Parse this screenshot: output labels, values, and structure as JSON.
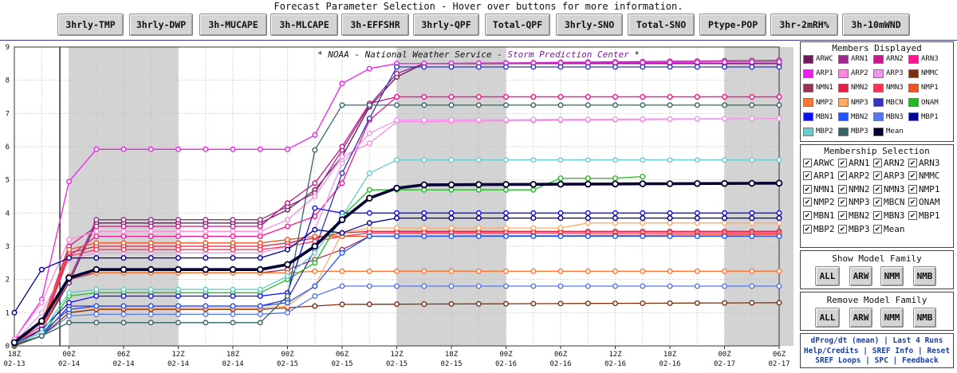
{
  "header": {
    "title": "Forecast Parameter Selection - Hover over buttons for more information.",
    "buttons": [
      "3hrly-TMP",
      "3hrly-DWP",
      "3h-MUCAPE",
      "3h-MLCAPE",
      "3h-EFFSHR",
      "3hrly-QPF",
      "Total-QPF",
      "3hrly-SNO",
      "Total-SNO",
      "Ptype-POP",
      "3hr-2mRH%",
      "3h-10mWND"
    ]
  },
  "chart_data": {
    "type": "line",
    "banner": "* NOAA - National Weather Service - Storm Prediction Center *",
    "banner_parts": {
      "prefix": "* NOAA - National Weather Service - ",
      "link": "Storm Prediction Center",
      "suffix": " *"
    },
    "x_ticks": [
      {
        "hour": "18Z",
        "date": "02-13"
      },
      {
        "hour": "00Z",
        "date": "02-14"
      },
      {
        "hour": "06Z",
        "date": "02-14"
      },
      {
        "hour": "12Z",
        "date": "02-14"
      },
      {
        "hour": "18Z",
        "date": "02-14"
      },
      {
        "hour": "00Z",
        "date": "02-15"
      },
      {
        "hour": "06Z",
        "date": "02-15"
      },
      {
        "hour": "12Z",
        "date": "02-15"
      },
      {
        "hour": "18Z",
        "date": "02-15"
      },
      {
        "hour": "00Z",
        "date": "02-16"
      },
      {
        "hour": "06Z",
        "date": "02-16"
      },
      {
        "hour": "12Z",
        "date": "02-16"
      },
      {
        "hour": "18Z",
        "date": "02-16"
      },
      {
        "hour": "00Z",
        "date": "02-17"
      },
      {
        "hour": "06Z",
        "date": "02-17"
      }
    ],
    "x_step_hours": 3,
    "n_points": 29,
    "y_ticks": [
      0,
      1,
      2,
      3,
      4,
      5,
      6,
      7,
      8,
      9
    ],
    "ylim": [
      0,
      9
    ],
    "night_bands_hours": [
      [
        6,
        18
      ],
      [
        42,
        54
      ],
      [
        78,
        90
      ],
      [
        114,
        126
      ]
    ],
    "current_time_hours": 5,
    "series": [
      {
        "name": "ARWC",
        "color": "#6a1b5a",
        "key": [
          [
            0,
            0
          ],
          [
            1,
            0.5
          ],
          [
            2,
            1.9
          ],
          [
            3,
            3.7
          ],
          [
            9,
            3.7
          ],
          [
            10,
            4.1
          ],
          [
            11,
            4.7
          ],
          [
            12,
            5.7
          ],
          [
            13,
            7.2
          ],
          [
            14,
            8.1
          ],
          [
            15,
            8.5
          ],
          [
            28,
            8.5
          ]
        ]
      },
      {
        "name": "ARN1",
        "color": "#9a2a8c",
        "key": [
          [
            0,
            0.1
          ],
          [
            1,
            0.6
          ],
          [
            2,
            2.0
          ],
          [
            3,
            3.8
          ],
          [
            9,
            3.8
          ],
          [
            10,
            4.2
          ],
          [
            11,
            4.6
          ],
          [
            12,
            5.9
          ],
          [
            13,
            7.25
          ],
          [
            14,
            8.2
          ],
          [
            15,
            8.5
          ],
          [
            28,
            8.6
          ]
        ]
      },
      {
        "name": "ARN2",
        "color": "#c8168c",
        "key": [
          [
            0,
            0.2
          ],
          [
            1,
            0.7
          ],
          [
            2,
            3.0
          ],
          [
            3,
            3.6
          ],
          [
            9,
            3.6
          ],
          [
            10,
            4.3
          ],
          [
            11,
            4.9
          ],
          [
            12,
            6.0
          ],
          [
            13,
            7.3
          ],
          [
            14,
            7.5
          ],
          [
            28,
            7.5
          ]
        ]
      },
      {
        "name": "ARN3",
        "color": "#ff1493",
        "key": [
          [
            0,
            0.1
          ],
          [
            1,
            0.5
          ],
          [
            2,
            2.7
          ],
          [
            3,
            3.3
          ],
          [
            9,
            3.3
          ],
          [
            10,
            3.6
          ],
          [
            11,
            3.9
          ],
          [
            12,
            4.9
          ],
          [
            13,
            6.8
          ],
          [
            14,
            7.5
          ],
          [
            28,
            7.5
          ]
        ]
      },
      {
        "name": "ARP1",
        "color": "#ee22ee",
        "key": [
          [
            0,
            0.2
          ],
          [
            1,
            1.4
          ],
          [
            2,
            4.95
          ],
          [
            3,
            5.92
          ],
          [
            10,
            5.92
          ],
          [
            11,
            6.35
          ],
          [
            12,
            7.9
          ],
          [
            13,
            8.35
          ],
          [
            14,
            8.5
          ],
          [
            28,
            8.55
          ]
        ]
      },
      {
        "name": "ARP2",
        "color": "#ff88dd",
        "key": [
          [
            0,
            0.2
          ],
          [
            1,
            1.3
          ],
          [
            2,
            3.2
          ],
          [
            3,
            3.45
          ],
          [
            9,
            3.45
          ],
          [
            10,
            3.8
          ],
          [
            11,
            4.5
          ],
          [
            12,
            5.7
          ],
          [
            13,
            6.1
          ],
          [
            14,
            6.75
          ],
          [
            28,
            6.85
          ]
        ]
      },
      {
        "name": "ARP3",
        "color": "#ee99ee",
        "key": [
          [
            0,
            0.1
          ],
          [
            1,
            1.0
          ],
          [
            2,
            2.6
          ],
          [
            3,
            2.8
          ],
          [
            9,
            2.8
          ],
          [
            10,
            3.0
          ],
          [
            11,
            3.5
          ],
          [
            12,
            5.5
          ],
          [
            13,
            6.4
          ],
          [
            14,
            6.8
          ],
          [
            28,
            6.85
          ]
        ]
      },
      {
        "name": "NMMC",
        "color": "#7a3010",
        "key": [
          [
            0,
            0
          ],
          [
            1,
            0.3
          ],
          [
            2,
            1.0
          ],
          [
            3,
            1.1
          ],
          [
            9,
            1.1
          ],
          [
            10,
            1.15
          ],
          [
            11,
            1.2
          ],
          [
            12,
            1.25
          ],
          [
            28,
            1.3
          ]
        ]
      },
      {
        "name": "NMN1",
        "color": "#993355",
        "key": [
          [
            0,
            0.1
          ],
          [
            1,
            0.5
          ],
          [
            2,
            2.0
          ],
          [
            3,
            2.2
          ],
          [
            9,
            2.2
          ],
          [
            10,
            2.3
          ],
          [
            11,
            2.6
          ],
          [
            12,
            2.9
          ],
          [
            13,
            3.3
          ],
          [
            14,
            3.3
          ],
          [
            28,
            3.35
          ]
        ]
      },
      {
        "name": "NMN2",
        "color": "#dd2244",
        "key": [
          [
            0,
            0.1
          ],
          [
            1,
            0.6
          ],
          [
            2,
            2.8
          ],
          [
            3,
            3.0
          ],
          [
            9,
            3.0
          ],
          [
            10,
            3.1
          ],
          [
            11,
            3.25
          ],
          [
            12,
            3.4
          ],
          [
            13,
            3.45
          ],
          [
            28,
            3.45
          ]
        ]
      },
      {
        "name": "NMN3",
        "color": "#ff3355",
        "key": [
          [
            0,
            0.1
          ],
          [
            1,
            0.6
          ],
          [
            2,
            2.7
          ],
          [
            3,
            2.9
          ],
          [
            9,
            2.9
          ],
          [
            10,
            3.0
          ],
          [
            11,
            3.15
          ],
          [
            12,
            3.3
          ],
          [
            13,
            3.4
          ],
          [
            28,
            3.4
          ]
        ]
      },
      {
        "name": "NMP1",
        "color": "#ee5522",
        "key": [
          [
            0,
            0.1
          ],
          [
            1,
            0.7
          ],
          [
            2,
            2.9
          ],
          [
            3,
            3.1
          ],
          [
            9,
            3.1
          ],
          [
            10,
            3.2
          ],
          [
            11,
            3.3
          ],
          [
            12,
            3.3
          ],
          [
            28,
            3.35
          ]
        ]
      },
      {
        "name": "NMP2",
        "color": "#ff7733",
        "key": [
          [
            0,
            0.1
          ],
          [
            1,
            0.5
          ],
          [
            2,
            2.1
          ],
          [
            3,
            2.2
          ],
          [
            9,
            2.2
          ],
          [
            10,
            2.2
          ],
          [
            11,
            2.25
          ],
          [
            28,
            2.25
          ]
        ]
      },
      {
        "name": "NMP3",
        "color": "#ffaa66",
        "key": [
          [
            0,
            0.1
          ],
          [
            1,
            0.4
          ],
          [
            2,
            1.1
          ],
          [
            3,
            1.15
          ],
          [
            9,
            1.15
          ],
          [
            10,
            1.2
          ],
          [
            11,
            1.8
          ],
          [
            12,
            3.4
          ],
          [
            13,
            3.55
          ],
          [
            20,
            3.55
          ],
          [
            21,
            3.7
          ],
          [
            28,
            3.7
          ]
        ]
      },
      {
        "name": "MBCN",
        "color": "#3333bb",
        "key": [
          [
            0,
            0.05
          ],
          [
            1,
            0.3
          ],
          [
            2,
            1.2
          ],
          [
            3,
            1.2
          ],
          [
            9,
            1.2
          ],
          [
            10,
            1.4
          ],
          [
            11,
            2.9
          ],
          [
            12,
            5.2
          ],
          [
            13,
            6.85
          ],
          [
            14,
            8.4
          ],
          [
            28,
            8.4
          ]
        ]
      },
      {
        "name": "ONAM",
        "color": "#22bb22",
        "key": [
          [
            0,
            0.05
          ],
          [
            1,
            0.3
          ],
          [
            2,
            1.5
          ],
          [
            3,
            1.6
          ],
          [
            9,
            1.6
          ],
          [
            10,
            2.0
          ],
          [
            11,
            2.5
          ],
          [
            12,
            3.9
          ],
          [
            13,
            4.7
          ],
          [
            19,
            4.7
          ],
          [
            20,
            5.05
          ],
          [
            22,
            5.05
          ],
          [
            23,
            5.1
          ]
        ]
      },
      {
        "name": "MBN1",
        "color": "#1111ee",
        "key": [
          [
            0,
            0.05
          ],
          [
            1,
            0.5
          ],
          [
            2,
            1.3
          ],
          [
            3,
            1.5
          ],
          [
            9,
            1.5
          ],
          [
            10,
            1.6
          ],
          [
            11,
            4.15
          ],
          [
            12,
            4.0
          ],
          [
            13,
            4.0
          ],
          [
            28,
            4.0
          ]
        ]
      },
      {
        "name": "MBN2",
        "color": "#2255ff",
        "key": [
          [
            0,
            0.05
          ],
          [
            1,
            0.4
          ],
          [
            2,
            1.1
          ],
          [
            3,
            1.2
          ],
          [
            9,
            1.2
          ],
          [
            10,
            1.3
          ],
          [
            11,
            1.8
          ],
          [
            12,
            2.8
          ],
          [
            13,
            3.3
          ],
          [
            28,
            3.3
          ]
        ]
      },
      {
        "name": "MBN3",
        "color": "#5577ee",
        "key": [
          [
            0,
            0.05
          ],
          [
            1,
            0.3
          ],
          [
            2,
            0.9
          ],
          [
            3,
            0.95
          ],
          [
            9,
            0.95
          ],
          [
            10,
            1.0
          ],
          [
            11,
            1.5
          ],
          [
            12,
            1.8
          ],
          [
            28,
            1.8
          ]
        ]
      },
      {
        "name": "MBP1",
        "color": "#000099",
        "key": [
          [
            0,
            1.0
          ],
          [
            1,
            2.3
          ],
          [
            2,
            2.65
          ],
          [
            9,
            2.65
          ],
          [
            10,
            2.9
          ],
          [
            11,
            3.5
          ],
          [
            12,
            3.4
          ],
          [
            13,
            3.7
          ],
          [
            14,
            3.85
          ],
          [
            28,
            3.85
          ]
        ]
      },
      {
        "name": "MBP2",
        "color": "#66cccc",
        "key": [
          [
            0,
            0.05
          ],
          [
            1,
            0.4
          ],
          [
            2,
            1.6
          ],
          [
            3,
            1.7
          ],
          [
            9,
            1.7
          ],
          [
            10,
            2.1
          ],
          [
            11,
            2.8
          ],
          [
            12,
            3.9
          ],
          [
            13,
            5.2
          ],
          [
            14,
            5.6
          ],
          [
            28,
            5.6
          ]
        ]
      },
      {
        "name": "MBP3",
        "color": "#336666",
        "key": [
          [
            0,
            0.05
          ],
          [
            1,
            0.3
          ],
          [
            2,
            0.7
          ],
          [
            9,
            0.7
          ],
          [
            10,
            1.5
          ],
          [
            11,
            5.9
          ],
          [
            12,
            7.25
          ],
          [
            28,
            7.25
          ]
        ]
      },
      {
        "name": "Mean",
        "color": "#000033",
        "bold": true,
        "key": [
          [
            0,
            0.1
          ],
          [
            1,
            0.75
          ],
          [
            2,
            2.05
          ],
          [
            3,
            2.3
          ],
          [
            9,
            2.3
          ],
          [
            10,
            2.45
          ],
          [
            11,
            3.0
          ],
          [
            12,
            3.8
          ],
          [
            13,
            4.45
          ],
          [
            14,
            4.75
          ],
          [
            15,
            4.85
          ],
          [
            28,
            4.9
          ]
        ]
      }
    ]
  },
  "members_displayed": {
    "title": "Members Displayed"
  },
  "membership_selection": {
    "title": "Membership Selection"
  },
  "show_family": {
    "title": "Show Model Family",
    "buttons": [
      "ALL",
      "ARW",
      "NMM",
      "NMB"
    ]
  },
  "remove_family": {
    "title": "Remove Model Family",
    "buttons": [
      "ALL",
      "ARW",
      "NMM",
      "NMB"
    ]
  },
  "footer_links": {
    "line1": [
      "dProg/dt (mean)",
      "Last 4 Runs"
    ],
    "line2": [
      "Help/Credits",
      "SREF Info",
      "Reset"
    ],
    "line3": [
      "SREF Loops",
      "SPC",
      "Feedback"
    ],
    "separator": "|"
  }
}
